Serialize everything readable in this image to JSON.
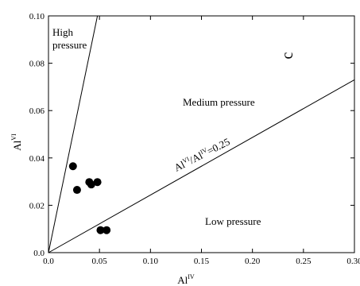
{
  "chart_data": {
    "type": "scatter",
    "xlabel": {
      "base": "Al",
      "sup": "IV"
    },
    "ylabel": {
      "base": "Al",
      "sup": "VI"
    },
    "xlim": [
      0,
      0.3
    ],
    "ylim": [
      0,
      0.1
    ],
    "x_ticks": [
      0.0,
      0.05,
      0.1,
      0.15,
      0.2,
      0.25,
      0.3
    ],
    "x_tick_labels": [
      "0.0",
      "0.05",
      "0.10",
      "0.15",
      "0.20",
      "0.25",
      "0.30"
    ],
    "y_ticks": [
      0.0,
      0.02,
      0.04,
      0.06,
      0.08,
      0.1
    ],
    "y_tick_labels": [
      "0.0",
      "0.02",
      "0.04",
      "0.06",
      "0.08",
      "0.10"
    ],
    "points": [
      {
        "x": 0.024,
        "y": 0.0365
      },
      {
        "x": 0.028,
        "y": 0.0265
      },
      {
        "x": 0.04,
        "y": 0.0298
      },
      {
        "x": 0.042,
        "y": 0.0288
      },
      {
        "x": 0.048,
        "y": 0.0298
      },
      {
        "x": 0.051,
        "y": 0.0095
      },
      {
        "x": 0.057,
        "y": 0.0095
      }
    ],
    "lines": [
      {
        "name": "high-medium-boundary",
        "x": [
          0,
          0.048
        ],
        "y": [
          0,
          0.1
        ]
      },
      {
        "name": "medium-low-boundary",
        "x": [
          0,
          0.3
        ],
        "y": [
          0,
          0.073
        ],
        "label_parts": [
          "Al",
          "VI",
          "/Al",
          "IV",
          "=0.25"
        ]
      }
    ],
    "regions": [
      {
        "lines": [
          "High",
          "pressure"
        ]
      },
      {
        "lines": [
          "Medium pressure"
        ]
      },
      {
        "lines": [
          "Low pressure"
        ]
      }
    ],
    "panel_letter": "c"
  }
}
